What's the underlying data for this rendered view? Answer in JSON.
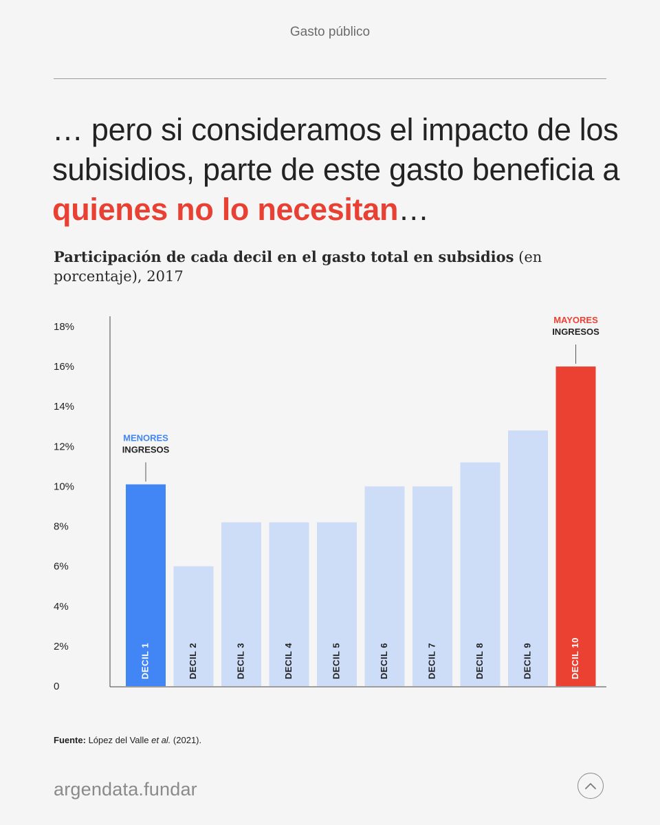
{
  "header": {
    "section": "Gasto público"
  },
  "headline": {
    "part1": "… pero si consideramos el impacto de los subisidios, parte de este gasto beneficia a ",
    "highlight": "quienes no lo necesitan",
    "part2": "…"
  },
  "subtitle": {
    "bold": "Participación de cada decil en el gasto total en subsidios",
    "rest": " (en porcentaje), 2017"
  },
  "chart_data": {
    "type": "bar",
    "categories": [
      "DECIL 1",
      "DECIL 2",
      "DECIL 3",
      "DECIL 4",
      "DECIL 5",
      "DECIL 6",
      "DECIL 7",
      "DECIL 8",
      "DECIL 9",
      "DECIL 10"
    ],
    "values": [
      10.1,
      6.0,
      8.2,
      8.2,
      8.2,
      10.0,
      10.0,
      11.2,
      12.8,
      16.0
    ],
    "ylim": [
      0,
      18
    ],
    "yticks": [
      {
        "value": 0,
        "label": "0"
      },
      {
        "value": 2,
        "label": "2%"
      },
      {
        "value": 4,
        "label": "4%"
      },
      {
        "value": 6,
        "label": "6%"
      },
      {
        "value": 8,
        "label": "8%"
      },
      {
        "value": 10,
        "label": "10%"
      },
      {
        "value": 12,
        "label": "12%"
      },
      {
        "value": 14,
        "label": "14%"
      },
      {
        "value": 16,
        "label": "16%"
      },
      {
        "value": 18,
        "label": "18%"
      }
    ],
    "colors": {
      "low": "#4285f4",
      "default": "#cddcf7",
      "high": "#eb4132",
      "label_light": "#ffffff",
      "label_dark": "#222222"
    },
    "annotations": [
      {
        "index": 0,
        "line1": "MENORES",
        "line2": "INGRESOS",
        "line1_color": "#4285f4"
      },
      {
        "index": 9,
        "line1": "MAYORES",
        "line2": "INGRESOS",
        "line1_color": "#eb4132"
      }
    ]
  },
  "source": {
    "label": "Fuente:",
    "authors": "López del Valle ",
    "etal": "et al.",
    "year": " (2021)."
  },
  "footer": {
    "brand": "argendata.fundar"
  }
}
